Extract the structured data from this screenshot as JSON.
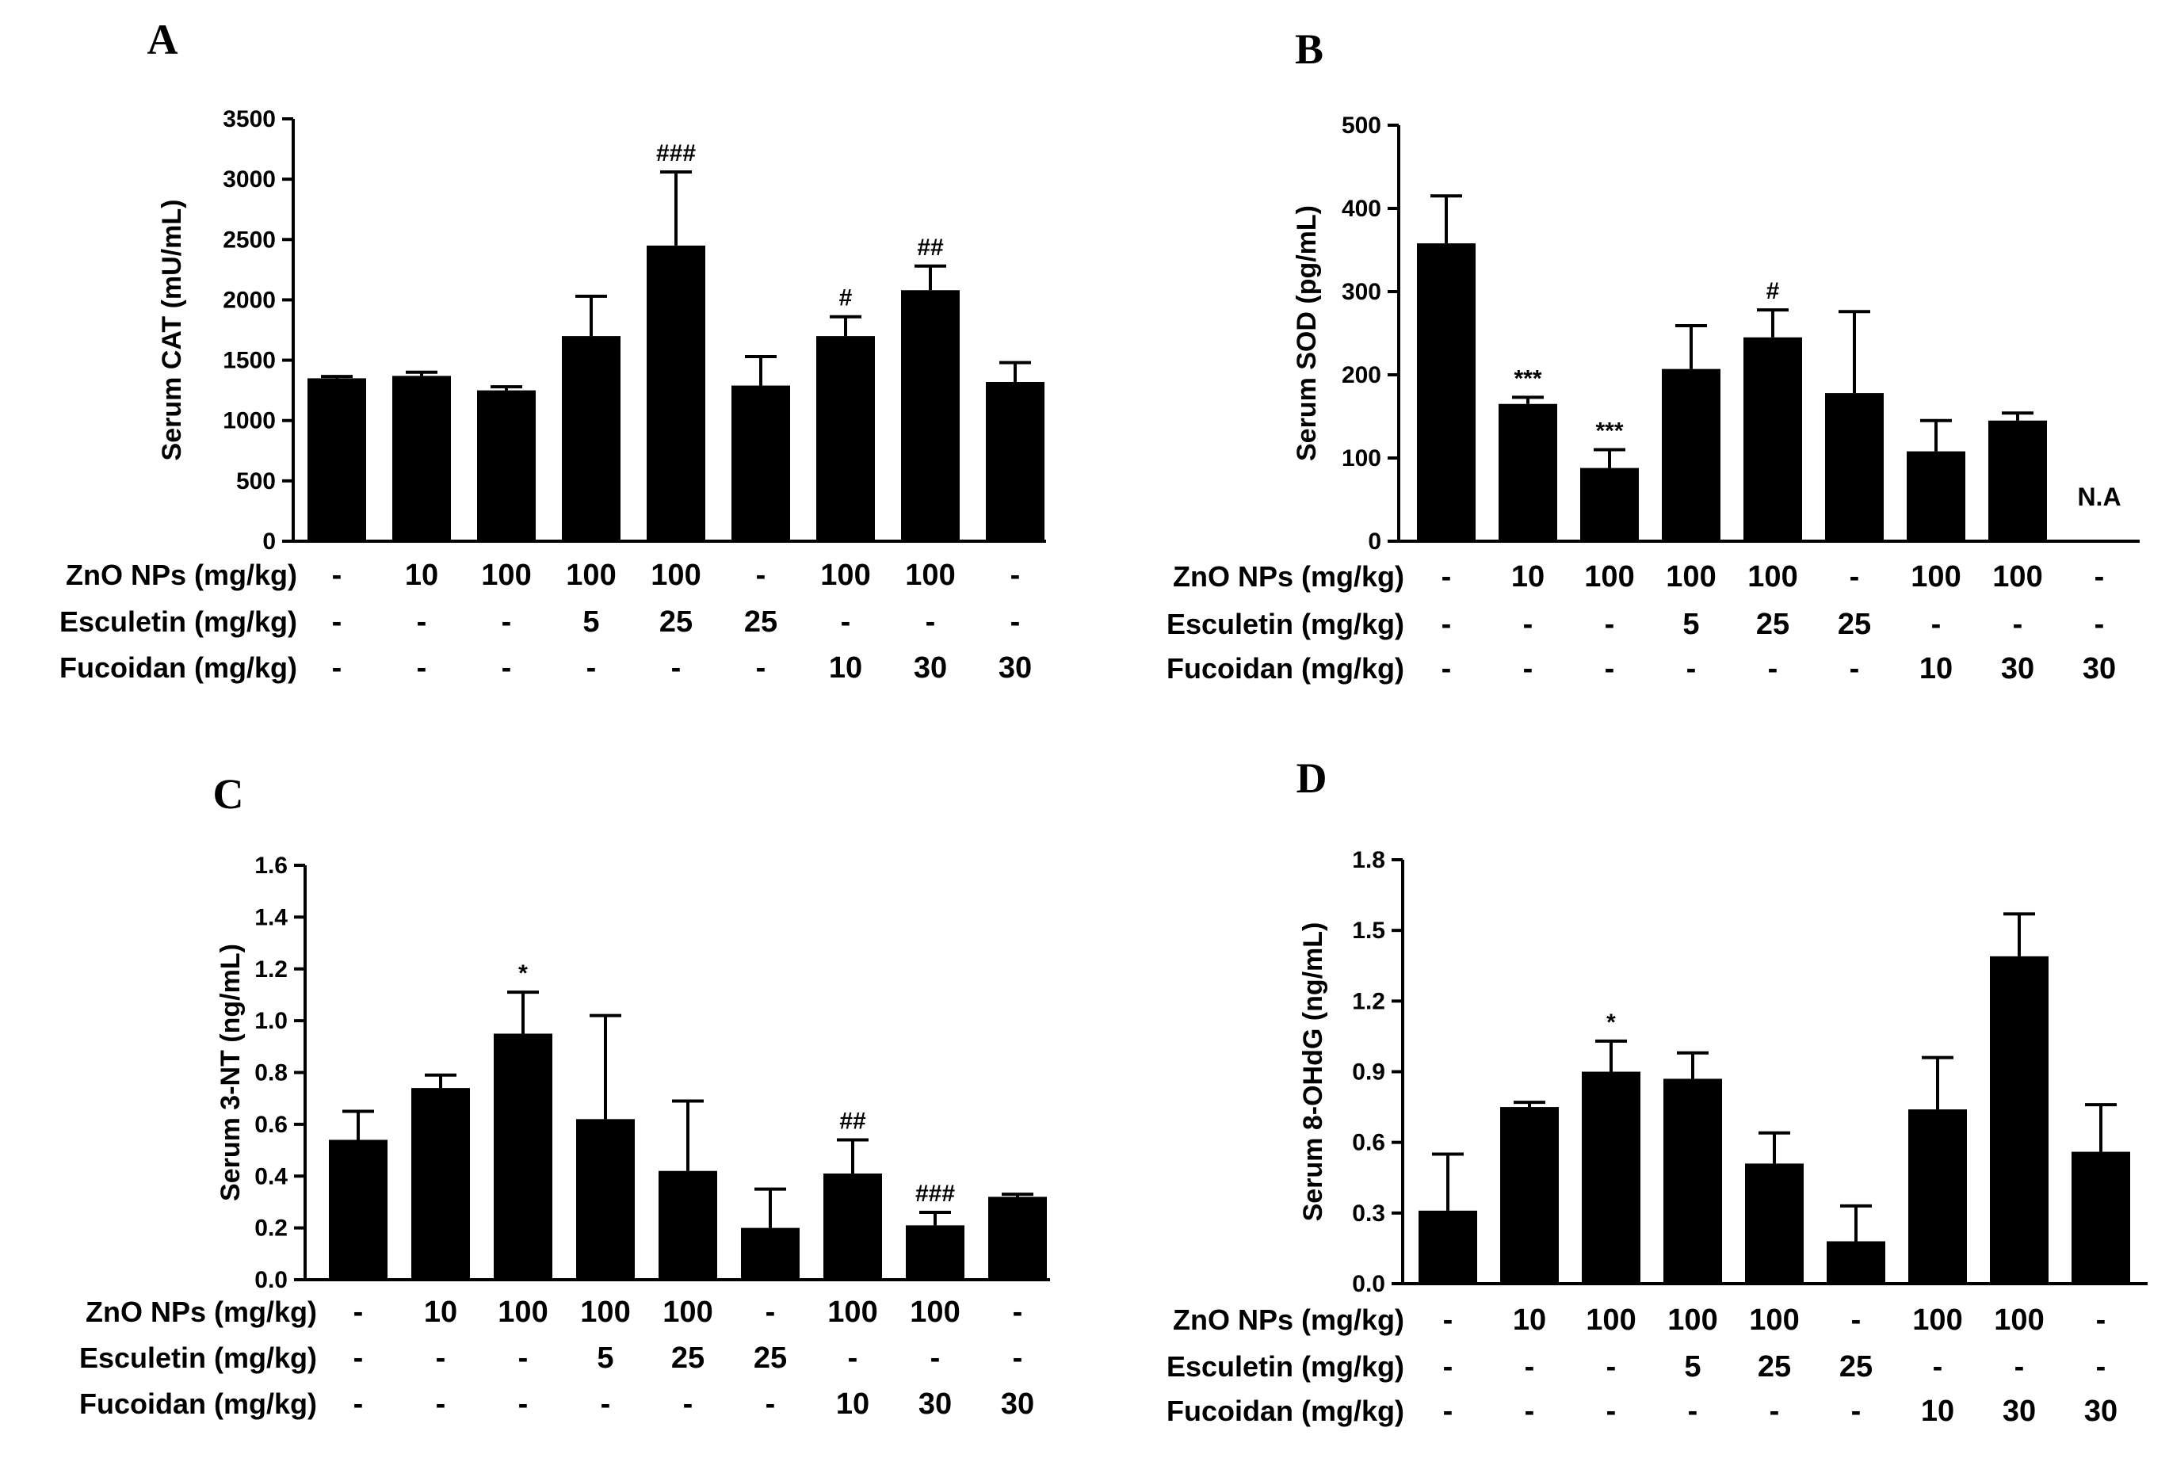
{
  "chart_data": [
    {
      "id": "A",
      "type": "bar",
      "panel_label": "A",
      "ylabel": "Serum CAT (mU/mL)",
      "ylim": [
        0,
        3500
      ],
      "yticks": [
        "0",
        "500",
        "1000",
        "1500",
        "2000",
        "2500",
        "3000",
        "3500"
      ],
      "ytick_values": [
        0,
        500,
        1000,
        1500,
        2000,
        2500,
        3000,
        3500
      ],
      "values": [
        1350,
        1370,
        1250,
        1700,
        2450,
        1290,
        1700,
        2080,
        1320
      ],
      "errors": [
        15,
        30,
        30,
        330,
        610,
        240,
        160,
        200,
        160
      ],
      "annotations": [
        "",
        "",
        "",
        "",
        "###",
        "",
        "#",
        "##",
        ""
      ],
      "na_label": null,
      "treatment_table": [
        {
          "label": "ZnO NPs (mg/kg)",
          "values": [
            "-",
            "10",
            "100",
            "100",
            "100",
            "-",
            "100",
            "100",
            "-"
          ]
        },
        {
          "label": "Esculetin (mg/kg)",
          "values": [
            "-",
            "-",
            "-",
            "5",
            "25",
            "25",
            "-",
            "-",
            "-"
          ]
        },
        {
          "label": "Fucoidan (mg/kg)",
          "values": [
            "-",
            "-",
            "-",
            "-",
            "-",
            "-",
            "10",
            "30",
            "30"
          ]
        }
      ]
    },
    {
      "id": "B",
      "type": "bar",
      "panel_label": "B",
      "ylabel": "Serum SOD (pg/mL)",
      "ylim": [
        0,
        500
      ],
      "yticks": [
        "0",
        "100",
        "200",
        "300",
        "400",
        "500"
      ],
      "ytick_values": [
        0,
        100,
        200,
        300,
        400,
        500
      ],
      "values": [
        358,
        165,
        88,
        207,
        245,
        178,
        108,
        145,
        0
      ],
      "errors": [
        57,
        8,
        22,
        52,
        33,
        98,
        37,
        9,
        0
      ],
      "annotations": [
        "",
        "***",
        "***",
        "",
        "#",
        "",
        "",
        "",
        ""
      ],
      "na_label": "N.A",
      "treatment_table": [
        {
          "label": "ZnO NPs (mg/kg)",
          "values": [
            "-",
            "10",
            "100",
            "100",
            "100",
            "-",
            "100",
            "100",
            "-"
          ]
        },
        {
          "label": "Esculetin (mg/kg)",
          "values": [
            "-",
            "-",
            "-",
            "5",
            "25",
            "25",
            "-",
            "-",
            "-"
          ]
        },
        {
          "label": "Fucoidan (mg/kg)",
          "values": [
            "-",
            "-",
            "-",
            "-",
            "-",
            "-",
            "10",
            "30",
            "30"
          ]
        }
      ]
    },
    {
      "id": "C",
      "type": "bar",
      "panel_label": "C",
      "ylabel": "Serum 3-NT (ng/mL)",
      "ylim": [
        0,
        1.6
      ],
      "yticks": [
        "0.0",
        "0.2",
        "0.4",
        "0.6",
        "0.8",
        "1.0",
        "1.2",
        "1.4",
        "1.6"
      ],
      "ytick_values": [
        0,
        0.2,
        0.4,
        0.6,
        0.8,
        1.0,
        1.2,
        1.4,
        1.6
      ],
      "values": [
        0.54,
        0.74,
        0.95,
        0.62,
        0.42,
        0.2,
        0.41,
        0.21,
        0.32
      ],
      "errors": [
        0.11,
        0.05,
        0.16,
        0.4,
        0.27,
        0.15,
        0.13,
        0.05,
        0.01
      ],
      "annotations": [
        "",
        "",
        "*",
        "",
        "",
        "",
        "##",
        "###",
        ""
      ],
      "na_label": null,
      "treatment_table": [
        {
          "label": "ZnO NPs (mg/kg)",
          "values": [
            "-",
            "10",
            "100",
            "100",
            "100",
            "-",
            "100",
            "100",
            "-"
          ]
        },
        {
          "label": "Esculetin (mg/kg)",
          "values": [
            "-",
            "-",
            "-",
            "5",
            "25",
            "25",
            "-",
            "-",
            "-"
          ]
        },
        {
          "label": "Fucoidan (mg/kg)",
          "values": [
            "-",
            "-",
            "-",
            "-",
            "-",
            "-",
            "10",
            "30",
            "30"
          ]
        }
      ]
    },
    {
      "id": "D",
      "type": "bar",
      "panel_label": "D",
      "ylabel": "Serum 8-OHdG (ng/mL)",
      "ylim": [
        0,
        1.8
      ],
      "yticks": [
        "0.0",
        "0.3",
        "0.6",
        "0.9",
        "1.2",
        "1.5",
        "1.8"
      ],
      "ytick_values": [
        0,
        0.3,
        0.6,
        0.9,
        1.2,
        1.5,
        1.8
      ],
      "values": [
        0.31,
        0.75,
        0.9,
        0.87,
        0.51,
        0.18,
        0.74,
        1.39,
        0.56
      ],
      "errors": [
        0.24,
        0.02,
        0.13,
        0.11,
        0.13,
        0.15,
        0.22,
        0.18,
        0.2
      ],
      "annotations": [
        "",
        "",
        "*",
        "",
        "",
        "",
        "",
        "",
        ""
      ],
      "na_label": null,
      "treatment_table": [
        {
          "label": "ZnO NPs (mg/kg)",
          "values": [
            "-",
            "10",
            "100",
            "100",
            "100",
            "-",
            "100",
            "100",
            "-"
          ]
        },
        {
          "label": "Esculetin (mg/kg)",
          "values": [
            "-",
            "-",
            "-",
            "5",
            "25",
            "25",
            "-",
            "-",
            "-"
          ]
        },
        {
          "label": "Fucoidan (mg/kg)",
          "values": [
            "-",
            "-",
            "-",
            "-",
            "-",
            "-",
            "10",
            "30",
            "30"
          ]
        }
      ]
    }
  ]
}
